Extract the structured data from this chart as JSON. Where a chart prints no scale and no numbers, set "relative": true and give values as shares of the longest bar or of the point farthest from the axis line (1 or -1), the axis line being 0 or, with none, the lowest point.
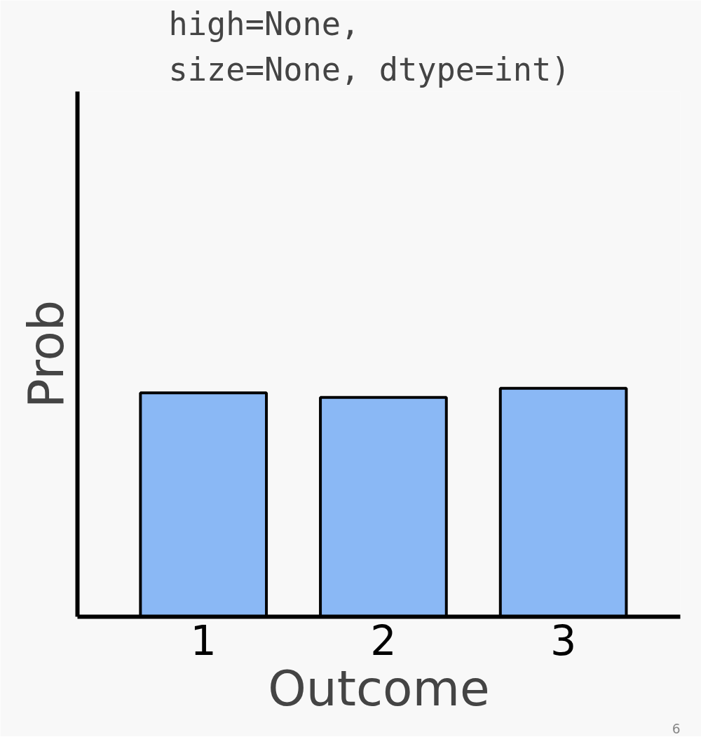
{
  "chart_data": {
    "type": "bar",
    "relative": true,
    "xlabel": "Outcome",
    "ylabel": "Prob",
    "categories": [
      "1",
      "2",
      "3"
    ],
    "values": [
      0.98,
      0.96,
      1
    ],
    "color": "#8ab8f5",
    "grid": false,
    "annotations": [
      "high=None,",
      "size=None, dtype=int)",
      "6"
    ]
  }
}
